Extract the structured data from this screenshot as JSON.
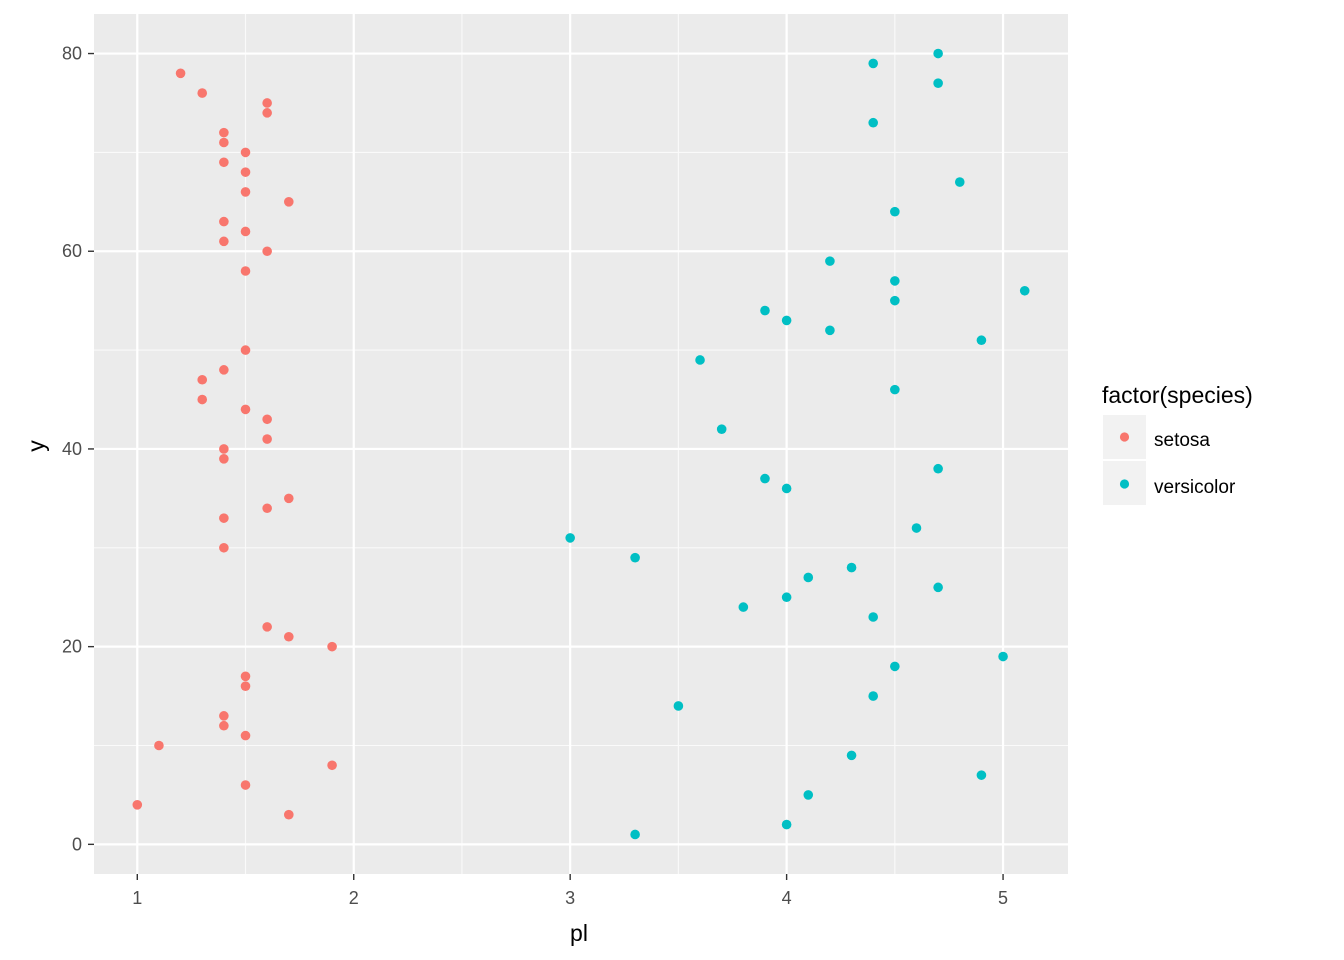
{
  "chart_data": {
    "type": "scatter",
    "title": "",
    "xlabel": "pl",
    "ylabel": "y",
    "xlim": [
      0.8,
      5.3
    ],
    "ylim": [
      -3,
      84
    ],
    "x_ticks": [
      1,
      2,
      3,
      4,
      5
    ],
    "x_tick_labels": [
      "1",
      "2",
      "3",
      "4",
      "5"
    ],
    "x_minor_ticks": [
      1.5,
      2.5,
      3.5,
      4.5
    ],
    "y_ticks": [
      0,
      20,
      40,
      60,
      80
    ],
    "y_tick_labels": [
      "0",
      "20",
      "40",
      "60",
      "80"
    ],
    "y_minor_ticks": [
      10,
      30,
      50,
      70
    ],
    "grid": true,
    "panel_background": "#ebebeb",
    "legend": {
      "title": "factor(species)",
      "position": "right",
      "entries": [
        "setosa",
        "versicolor"
      ]
    },
    "series": [
      {
        "name": "setosa",
        "color": "#f8766d",
        "points": [
          [
            1.2,
            78
          ],
          [
            1.3,
            76
          ],
          [
            1.6,
            75
          ],
          [
            1.6,
            74
          ],
          [
            1.4,
            72
          ],
          [
            1.4,
            71
          ],
          [
            1.5,
            70
          ],
          [
            1.4,
            69
          ],
          [
            1.5,
            68
          ],
          [
            1.5,
            66
          ],
          [
            1.7,
            65
          ],
          [
            1.4,
            63
          ],
          [
            1.5,
            62
          ],
          [
            1.4,
            61
          ],
          [
            1.6,
            60
          ],
          [
            1.5,
            58
          ],
          [
            1.5,
            50
          ],
          [
            1.4,
            48
          ],
          [
            1.3,
            47
          ],
          [
            1.3,
            45
          ],
          [
            1.5,
            44
          ],
          [
            1.6,
            43
          ],
          [
            1.6,
            41
          ],
          [
            1.4,
            40
          ],
          [
            1.4,
            39
          ],
          [
            1.7,
            35
          ],
          [
            1.6,
            34
          ],
          [
            1.4,
            33
          ],
          [
            1.4,
            30
          ],
          [
            1.6,
            22
          ],
          [
            1.7,
            21
          ],
          [
            1.9,
            20
          ],
          [
            1.5,
            17
          ],
          [
            1.5,
            16
          ],
          [
            1.4,
            13
          ],
          [
            1.4,
            12
          ],
          [
            1.5,
            11
          ],
          [
            1.1,
            10
          ],
          [
            1.9,
            8
          ],
          [
            1.5,
            6
          ],
          [
            1.0,
            4
          ],
          [
            1.7,
            3
          ]
        ]
      },
      {
        "name": "versicolor",
        "color": "#00bfc4",
        "points": [
          [
            4.7,
            80
          ],
          [
            4.4,
            79
          ],
          [
            4.7,
            77
          ],
          [
            4.4,
            73
          ],
          [
            4.8,
            67
          ],
          [
            4.5,
            64
          ],
          [
            4.2,
            59
          ],
          [
            4.5,
            57
          ],
          [
            5.1,
            56
          ],
          [
            4.5,
            55
          ],
          [
            3.9,
            54
          ],
          [
            4.0,
            53
          ],
          [
            4.2,
            52
          ],
          [
            4.9,
            51
          ],
          [
            3.6,
            49
          ],
          [
            4.5,
            46
          ],
          [
            3.7,
            42
          ],
          [
            4.7,
            38
          ],
          [
            3.9,
            37
          ],
          [
            4.0,
            36
          ],
          [
            4.6,
            32
          ],
          [
            3.0,
            31
          ],
          [
            3.3,
            29
          ],
          [
            4.3,
            28
          ],
          [
            4.1,
            27
          ],
          [
            4.7,
            26
          ],
          [
            4.0,
            25
          ],
          [
            3.8,
            24
          ],
          [
            4.4,
            23
          ],
          [
            5.0,
            19
          ],
          [
            4.5,
            18
          ],
          [
            4.4,
            15
          ],
          [
            3.5,
            14
          ],
          [
            4.3,
            9
          ],
          [
            4.9,
            7
          ],
          [
            4.1,
            5
          ],
          [
            4.0,
            2
          ],
          [
            3.3,
            1
          ]
        ]
      }
    ]
  }
}
